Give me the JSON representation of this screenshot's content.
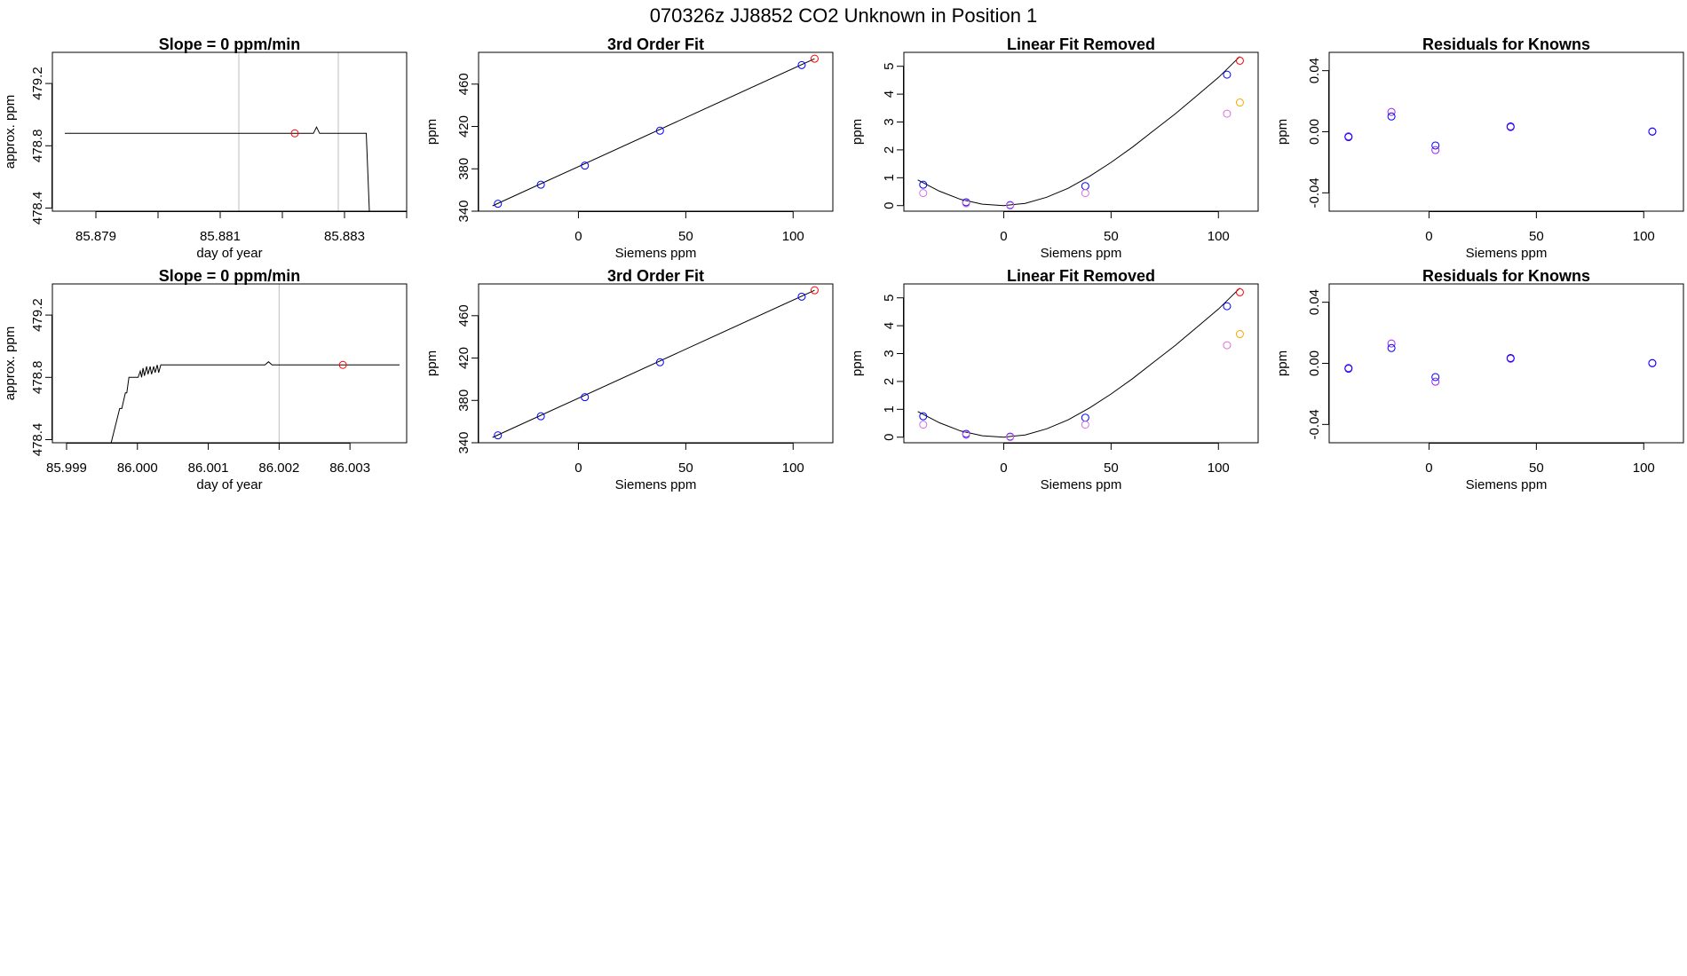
{
  "page_title": "070326z      JJ8852   CO2 Unknown in Position  1",
  "colors": {
    "line": "#000000",
    "known": "#0000ff",
    "unknown": "#ff0000",
    "residual_a": "#a020f0",
    "residual_b": "#0000ff",
    "previous": "#da70d6",
    "unknown_prev": "#ffa500",
    "marker_line": "#bebebe"
  },
  "chart_data": [
    {
      "type": "line",
      "title": "Slope =  0  ppm/min",
      "xlabel": "day of year",
      "ylabel": "approx. ppm",
      "xlim": [
        85.8783,
        85.884
      ],
      "ylim": [
        478.38,
        479.4
      ],
      "xticks": [
        85.879,
        85.88,
        85.881,
        85.882,
        85.883,
        85.884
      ],
      "xtick_labels": [
        "85.879",
        "",
        "85.881",
        "",
        "85.883",
        ""
      ],
      "yticks": [
        478.4,
        478.8,
        479.2
      ],
      "ytick_labels": [
        "478.4",
        "478.8",
        "479.2"
      ],
      "vlines": [
        85.8813,
        85.8829
      ],
      "series": [
        {
          "name": "trace",
          "x": [
            85.8785,
            85.88245,
            85.8825,
            85.88255,
            85.8826,
            85.8827,
            85.8831,
            85.88315,
            85.8832,
            85.8833,
            85.88335,
            85.8834
          ],
          "y": [
            478.88,
            478.88,
            478.88,
            478.92,
            478.88,
            478.88,
            478.88,
            478.88,
            478.88,
            478.88,
            478.88,
            478.38
          ]
        }
      ],
      "points": [
        {
          "x": 85.8822,
          "y": 478.88,
          "role": "unknown"
        }
      ]
    },
    {
      "type": "scatter",
      "title": "3rd Order Fit",
      "xlabel": "Siemens ppm",
      "ylabel": "ppm",
      "xlim": [
        -46.5,
        118.5
      ],
      "ylim": [
        340,
        490
      ],
      "xticks": [
        0,
        50,
        100
      ],
      "xtick_labels": [
        "0",
        "50",
        "100"
      ],
      "yticks": [
        340,
        380,
        420,
        460
      ],
      "ytick_labels": [
        "340",
        "380",
        "420",
        "460"
      ],
      "curve": {
        "x": [
          -40,
          110
        ],
        "y": [
          345,
          484
        ]
      },
      "points": [
        {
          "x": -37.5,
          "y": 347,
          "role": "known"
        },
        {
          "x": -17.5,
          "y": 365,
          "role": "known"
        },
        {
          "x": 3,
          "y": 383,
          "role": "known"
        },
        {
          "x": 38,
          "y": 416,
          "role": "known"
        },
        {
          "x": 104,
          "y": 478,
          "role": "known"
        },
        {
          "x": 110,
          "y": 484,
          "role": "unknown"
        }
      ]
    },
    {
      "type": "scatter",
      "title": "Linear Fit Removed",
      "xlabel": "Siemens ppm",
      "ylabel": "ppm",
      "xlim": [
        -46.5,
        118.5
      ],
      "ylim": [
        -0.2,
        5.5
      ],
      "xticks": [
        0,
        50,
        100
      ],
      "xtick_labels": [
        "0",
        "50",
        "100"
      ],
      "yticks": [
        0,
        1,
        2,
        3,
        4,
        5
      ],
      "ytick_labels": [
        "0",
        "1",
        "2",
        "3",
        "4",
        "5"
      ],
      "curve": {
        "x": [
          -40,
          -30,
          -20,
          -10,
          0,
          10,
          20,
          30,
          40,
          50,
          60,
          70,
          80,
          90,
          100,
          110
        ],
        "y": [
          0.92,
          0.52,
          0.22,
          0.05,
          0.0,
          0.08,
          0.3,
          0.62,
          1.05,
          1.55,
          2.1,
          2.7,
          3.3,
          3.95,
          4.6,
          5.35
        ]
      },
      "points": [
        {
          "x": -37.5,
          "y": 0.75,
          "role": "known"
        },
        {
          "x": -17.5,
          "y": 0.12,
          "role": "known"
        },
        {
          "x": 3,
          "y": 0.02,
          "role": "known"
        },
        {
          "x": 38,
          "y": 0.7,
          "role": "known"
        },
        {
          "x": 104,
          "y": 4.7,
          "role": "known"
        },
        {
          "x": 110,
          "y": 5.2,
          "role": "unknown"
        },
        {
          "x": -37.5,
          "y": 0.45,
          "role": "previous"
        },
        {
          "x": -17.5,
          "y": 0.08,
          "role": "previous"
        },
        {
          "x": 3,
          "y": 0.0,
          "role": "previous"
        },
        {
          "x": 38,
          "y": 0.45,
          "role": "previous"
        },
        {
          "x": 104,
          "y": 3.3,
          "role": "previous"
        },
        {
          "x": 110,
          "y": 3.7,
          "role": "unknown_prev"
        }
      ]
    },
    {
      "type": "scatter",
      "title": "Residuals for Knowns",
      "xlabel": "Siemens ppm",
      "ylabel": "ppm",
      "xlim": [
        -46.5,
        118.5
      ],
      "ylim": [
        -0.052,
        0.052
      ],
      "xticks": [
        0,
        50,
        100
      ],
      "xtick_labels": [
        "0",
        "50",
        "100"
      ],
      "yticks": [
        -0.04,
        0.0,
        0.04
      ],
      "ytick_labels": [
        "-0.04",
        "0.00",
        "0.04"
      ],
      "points": [
        {
          "x": -37.5,
          "y": -0.003,
          "role": "residual_a"
        },
        {
          "x": -37.5,
          "y": -0.0035,
          "role": "residual_b"
        },
        {
          "x": -17.5,
          "y": 0.013,
          "role": "residual_a"
        },
        {
          "x": -17.5,
          "y": 0.01,
          "role": "residual_b"
        },
        {
          "x": 3,
          "y": -0.012,
          "role": "residual_a"
        },
        {
          "x": 3,
          "y": -0.009,
          "role": "residual_b"
        },
        {
          "x": 38,
          "y": 0.003,
          "role": "residual_a"
        },
        {
          "x": 38,
          "y": 0.0035,
          "role": "residual_b"
        },
        {
          "x": 104,
          "y": 0.0,
          "role": "residual_a"
        },
        {
          "x": 104,
          "y": 0.0002,
          "role": "residual_b"
        }
      ]
    },
    {
      "type": "line",
      "title": "Slope =  0  ppm/min",
      "xlabel": "day of year",
      "ylabel": "approx. ppm",
      "xlim": [
        85.9988,
        86.0038
      ],
      "ylim": [
        478.38,
        479.4
      ],
      "xticks": [
        85.999,
        86.0,
        86.001,
        86.002,
        86.003
      ],
      "xtick_labels": [
        "85.999",
        "86.000",
        "86.001",
        "86.002",
        "86.003"
      ],
      "yticks": [
        478.4,
        478.8,
        479.2
      ],
      "ytick_labels": [
        "478.4",
        "478.8",
        "479.2"
      ],
      "vlines": [
        86.002,
        86.0038
      ],
      "series": [
        {
          "name": "trace",
          "x": [
            85.99963,
            85.99975,
            85.99978,
            85.99983,
            85.99985,
            85.99988,
            85.99991,
            85.99995,
            86.00001,
            86.00004,
            86.00006,
            86.00008,
            86.0001,
            86.00013,
            86.00015,
            86.00018,
            86.0002,
            86.00023,
            86.00025,
            86.00028,
            86.0003,
            86.00033,
            86.00036,
            86.0004,
            86.0018,
            86.00185,
            86.0019,
            86.0037
          ],
          "y": [
            478.38,
            478.6,
            478.6,
            478.7,
            478.7,
            478.8,
            478.8,
            478.8,
            478.8,
            478.84,
            478.8,
            478.86,
            478.81,
            478.87,
            478.82,
            478.87,
            478.82,
            478.87,
            478.83,
            478.88,
            478.83,
            478.88,
            478.88,
            478.88,
            478.88,
            478.9,
            478.88,
            478.88
          ]
        }
      ],
      "points": [
        {
          "x": 86.0029,
          "y": 478.88,
          "role": "unknown"
        }
      ]
    },
    {
      "type": "scatter",
      "title": "3rd Order Fit",
      "xlabel": "Siemens ppm",
      "ylabel": "ppm",
      "xlim": [
        -46.5,
        118.5
      ],
      "ylim": [
        340,
        490
      ],
      "xticks": [
        0,
        50,
        100
      ],
      "xtick_labels": [
        "0",
        "50",
        "100"
      ],
      "yticks": [
        340,
        380,
        420,
        460
      ],
      "ytick_labels": [
        "340",
        "380",
        "420",
        "460"
      ],
      "curve": {
        "x": [
          -40,
          110
        ],
        "y": [
          345,
          484
        ]
      },
      "points": [
        {
          "x": -37.5,
          "y": 347,
          "role": "known"
        },
        {
          "x": -17.5,
          "y": 365,
          "role": "known"
        },
        {
          "x": 3,
          "y": 383,
          "role": "known"
        },
        {
          "x": 38,
          "y": 416,
          "role": "known"
        },
        {
          "x": 104,
          "y": 478,
          "role": "known"
        },
        {
          "x": 110,
          "y": 484,
          "role": "unknown"
        }
      ]
    },
    {
      "type": "scatter",
      "title": "Linear Fit Removed",
      "xlabel": "Siemens ppm",
      "ylabel": "ppm",
      "xlim": [
        -46.5,
        118.5
      ],
      "ylim": [
        -0.2,
        5.5
      ],
      "xticks": [
        0,
        50,
        100
      ],
      "xtick_labels": [
        "0",
        "50",
        "100"
      ],
      "yticks": [
        0,
        1,
        2,
        3,
        4,
        5
      ],
      "ytick_labels": [
        "0",
        "1",
        "2",
        "3",
        "4",
        "5"
      ],
      "curve": {
        "x": [
          -40,
          -30,
          -20,
          -10,
          0,
          10,
          20,
          30,
          40,
          50,
          60,
          70,
          80,
          90,
          100,
          110
        ],
        "y": [
          0.92,
          0.52,
          0.22,
          0.05,
          0.0,
          0.08,
          0.3,
          0.62,
          1.05,
          1.55,
          2.1,
          2.7,
          3.3,
          3.95,
          4.6,
          5.35
        ]
      },
      "points": [
        {
          "x": -37.5,
          "y": 0.75,
          "role": "known"
        },
        {
          "x": -17.5,
          "y": 0.12,
          "role": "known"
        },
        {
          "x": 3,
          "y": 0.02,
          "role": "known"
        },
        {
          "x": 38,
          "y": 0.7,
          "role": "known"
        },
        {
          "x": 104,
          "y": 4.7,
          "role": "known"
        },
        {
          "x": 110,
          "y": 5.2,
          "role": "unknown"
        },
        {
          "x": -37.5,
          "y": 0.45,
          "role": "previous"
        },
        {
          "x": -17.5,
          "y": 0.08,
          "role": "previous"
        },
        {
          "x": 3,
          "y": 0.0,
          "role": "previous"
        },
        {
          "x": 38,
          "y": 0.45,
          "role": "previous"
        },
        {
          "x": 104,
          "y": 3.3,
          "role": "previous"
        },
        {
          "x": 110,
          "y": 3.7,
          "role": "unknown_prev"
        }
      ]
    },
    {
      "type": "scatter",
      "title": "Residuals for Knowns",
      "xlabel": "Siemens ppm",
      "ylabel": "ppm",
      "xlim": [
        -46.5,
        118.5
      ],
      "ylim": [
        -0.052,
        0.052
      ],
      "xticks": [
        0,
        50,
        100
      ],
      "xtick_labels": [
        "0",
        "50",
        "100"
      ],
      "yticks": [
        -0.04,
        0.0,
        0.04
      ],
      "ytick_labels": [
        "-0.04",
        "0.00",
        "0.04"
      ],
      "points": [
        {
          "x": -37.5,
          "y": -0.003,
          "role": "residual_a"
        },
        {
          "x": -37.5,
          "y": -0.0035,
          "role": "residual_b"
        },
        {
          "x": -17.5,
          "y": 0.013,
          "role": "residual_a"
        },
        {
          "x": -17.5,
          "y": 0.01,
          "role": "residual_b"
        },
        {
          "x": 3,
          "y": -0.012,
          "role": "residual_a"
        },
        {
          "x": 3,
          "y": -0.009,
          "role": "residual_b"
        },
        {
          "x": 38,
          "y": 0.003,
          "role": "residual_a"
        },
        {
          "x": 38,
          "y": 0.0035,
          "role": "residual_b"
        },
        {
          "x": 104,
          "y": 0.0,
          "role": "residual_a"
        },
        {
          "x": 104,
          "y": 0.0002,
          "role": "residual_b"
        }
      ]
    }
  ]
}
